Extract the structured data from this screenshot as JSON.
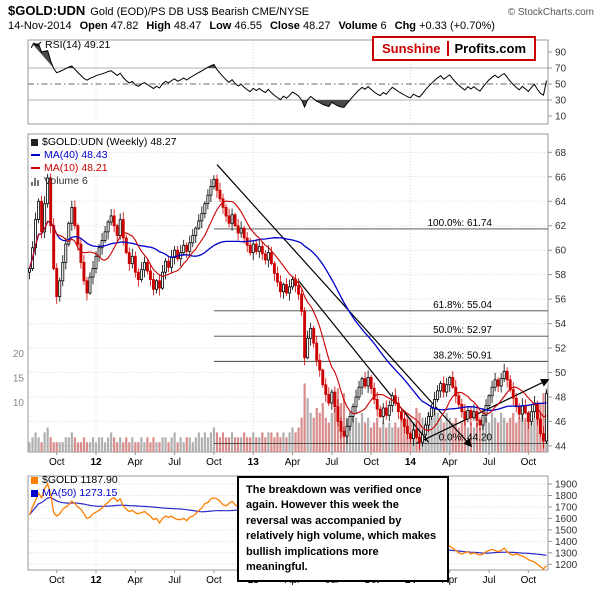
{
  "header": {
    "symbol": "$GOLD:UDN",
    "description": "Gold (EOD)/PS DB US$ Bearish CME/NYSE",
    "copyright": "© StockCharts.com",
    "date": "14-Nov-2014",
    "quote": [
      {
        "label": "Open",
        "value": "47.82"
      },
      {
        "label": "High",
        "value": "48.47"
      },
      {
        "label": "Low",
        "value": "46.55"
      },
      {
        "label": "Close",
        "value": "48.27"
      },
      {
        "label": "Volume",
        "value": "6"
      },
      {
        "label": "Chg",
        "value": "+0.33 (+0.70%)"
      }
    ]
  },
  "logo": {
    "first": "Sunshine",
    "second": "Profits.com"
  },
  "annotation": {
    "text": "The breakdown was verified once again. However this week the reversal was accompanied by relatively high volume, which makes bullish implications more meaningful."
  },
  "rsi_panel": {
    "legend": "RSI(14) 49.21",
    "yticks": [
      90,
      70,
      50,
      30,
      10
    ],
    "levels": {
      "upper": 70,
      "middle": 50,
      "lower": 30
    }
  },
  "main_panel": {
    "legend_symbol": "$GOLD:UDN (Weekly) 48.27",
    "legend_ma40": "MA(40) 48.43",
    "legend_ma10": "MA(10) 48.21",
    "legend_volume": "Volume 6",
    "yticks": [
      44,
      46,
      48,
      50,
      52,
      54,
      56,
      58,
      60,
      62,
      64,
      66,
      68
    ],
    "volume_yticks": [
      10,
      15,
      20
    ]
  },
  "gold_panel": {
    "legend_symbol": "$GOLD 1187.90",
    "legend_ma50": "MA(50) 1273.15",
    "yticks": [
      1200,
      1300,
      1400,
      1500,
      1600,
      1700,
      1800,
      1900
    ]
  },
  "colors": {
    "up_candle": "#000000",
    "down_candle": "#cc0000",
    "ma_fast": "#cc0000",
    "ma_slow": "#0000cc",
    "volume_up": "#b0b0b0",
    "volume_down": "#d98c8c",
    "gold_line": "#ff7f00",
    "gold_ma": "#2b2bcc",
    "fib": "#444444",
    "trendline": "#000000",
    "grid": "#d9d9d9",
    "panel_border": "#999999",
    "rsi_fill": "#4a4a4a",
    "accent_red": "#cc0000"
  },
  "chart_data": {
    "type": "candlestick",
    "panels": [
      "RSI(14) oscillator",
      "$GOLD:UDN weekly candlesticks with MA(40), MA(10), volume and Fibonacci retracements",
      "$GOLD line with MA(50)"
    ],
    "x_range": "Aug 2011 - 14 Nov 2014, weekly",
    "xticks": [
      {
        "t": "Oct",
        "w": 9
      },
      {
        "t": "12",
        "w": 22,
        "b": 1
      },
      {
        "t": "Apr",
        "w": 35
      },
      {
        "t": "Jul",
        "w": 48
      },
      {
        "t": "Oct",
        "w": 61
      },
      {
        "t": "13",
        "w": 74,
        "b": 1
      },
      {
        "t": "Apr",
        "w": 87
      },
      {
        "t": "Jul",
        "w": 100
      },
      {
        "t": "Oct",
        "w": 113
      },
      {
        "t": "14",
        "w": 126,
        "b": 1
      },
      {
        "t": "Apr",
        "w": 139
      },
      {
        "t": "Jul",
        "w": 152
      },
      {
        "t": "Oct",
        "w": 165
      }
    ],
    "year_weeks": [
      22,
      74,
      126
    ],
    "ratio_ylim": [
      43.5,
      69.5
    ],
    "gold_ylim": [
      1150,
      1970
    ],
    "rsi_period": 14,
    "fib_start_week": 61,
    "fib_levels": [
      {
        "label": "100.0%: 61.74",
        "value": 61.74
      },
      {
        "label": "61.8%: 55.04",
        "value": 55.04
      },
      {
        "label": "50.0%: 52.97",
        "value": 52.97
      },
      {
        "label": "38.2%: 50.91",
        "value": 50.91
      },
      {
        "label": "0.0%: 44.20",
        "value": 44.2
      }
    ],
    "trendlines": [
      {
        "points": [
          [
            62,
            67.0
          ],
          [
            146,
            44.0
          ]
        ],
        "arrow": true
      },
      {
        "points": [
          [
            128,
            44.2
          ],
          [
            171.5,
            49.4
          ]
        ],
        "arrow": true
      },
      {
        "points": [
          [
            89,
            57.5
          ],
          [
            132,
            44.3
          ]
        ],
        "arrow": false
      }
    ],
    "ratio_closes": [
      58.5,
      60.2,
      62.5,
      64.0,
      61.5,
      63.8,
      65.9,
      62.0,
      58.5,
      56.2,
      57.5,
      59.0,
      60.5,
      62.2,
      63.5,
      62.0,
      60.5,
      59.0,
      57.5,
      56.5,
      57.8,
      58.5,
      59.5,
      60.2,
      60.8,
      61.5,
      62.3,
      62.8,
      62.0,
      61.2,
      62.5,
      61.0,
      59.8,
      58.9,
      59.5,
      58.2,
      57.6,
      58.4,
      59.0,
      58.3,
      57.6,
      56.8,
      57.5,
      56.9,
      58.2,
      59.1,
      58.6,
      59.4,
      60.0,
      59.3,
      59.8,
      60.4,
      59.9,
      60.6,
      61.2,
      61.8,
      62.4,
      63.0,
      63.8,
      64.5,
      65.2,
      65.8,
      64.9,
      64.2,
      63.5,
      62.8,
      62.2,
      62.9,
      62.0,
      61.4,
      61.8,
      61.0,
      60.4,
      59.8,
      60.5,
      59.9,
      60.3,
      59.7,
      59.2,
      59.8,
      58.9,
      58.1,
      57.4,
      56.6,
      57.2,
      56.5,
      57.0,
      57.6,
      57.1,
      56.4,
      55.0,
      51.2,
      52.8,
      53.6,
      52.4,
      51.0,
      50.2,
      49.0,
      48.2,
      47.5,
      48.4,
      47.2,
      46.0,
      45.2,
      44.8,
      45.6,
      46.4,
      47.2,
      48.0,
      48.8,
      49.5,
      48.9,
      49.6,
      48.7,
      47.8,
      47.0,
      46.4,
      47.1,
      46.5,
      47.3,
      48.1,
      47.5,
      46.8,
      46.2,
      45.6,
      45.0,
      44.6,
      45.3,
      44.7,
      44.3,
      44.9,
      45.7,
      46.4,
      47.1,
      47.8,
      48.5,
      49.1,
      48.4,
      49.0,
      49.6,
      48.8,
      48.1,
      47.4,
      46.8,
      46.2,
      46.9,
      46.3,
      46.8,
      46.1,
      45.7,
      46.5,
      47.3,
      48.1,
      48.8,
      49.4,
      48.9,
      49.5,
      50.1,
      49.4,
      48.6,
      47.9,
      47.2,
      46.6,
      47.3,
      46.7,
      46.0,
      46.8,
      47.5,
      46.2,
      45.0,
      44.4,
      48.27
    ],
    "volume": [
      2,
      3,
      4,
      3,
      2,
      4,
      5,
      3,
      2,
      2,
      2,
      2,
      3,
      3,
      4,
      3,
      2,
      2,
      3,
      2,
      2,
      3,
      2,
      3,
      3,
      2,
      3,
      4,
      3,
      2,
      3,
      2,
      3,
      2,
      3,
      2,
      2,
      3,
      2,
      3,
      2,
      3,
      2,
      2,
      3,
      3,
      2,
      3,
      4,
      2,
      3,
      2,
      3,
      3,
      2,
      3,
      4,
      3,
      4,
      3,
      4,
      5,
      4,
      3,
      4,
      3,
      3,
      4,
      3,
      3,
      3,
      4,
      3,
      3,
      4,
      3,
      3,
      4,
      3,
      4,
      4,
      3,
      4,
      3,
      4,
      3,
      4,
      5,
      4,
      5,
      7,
      14,
      11,
      8,
      7,
      9,
      8,
      10,
      7,
      6,
      8,
      9,
      13,
      10,
      12,
      7,
      6,
      8,
      7,
      6,
      8,
      6,
      7,
      5,
      6,
      7,
      5,
      6,
      5,
      6,
      5,
      6,
      5,
      7,
      6,
      8,
      7,
      6,
      9,
      8,
      7,
      6,
      8,
      7,
      9,
      8,
      7,
      6,
      8,
      7,
      6,
      7,
      5,
      6,
      7,
      5,
      6,
      5,
      6,
      5,
      6,
      7,
      6,
      8,
      7,
      6,
      8,
      7,
      6,
      7,
      8,
      6,
      7,
      9,
      7,
      8,
      6,
      7,
      9,
      10,
      12,
      13
    ],
    "gold_closes": [
      1630,
      1700,
      1760,
      1820,
      1780,
      1860,
      1900,
      1810,
      1650,
      1620,
      1640,
      1680,
      1700,
      1720,
      1750,
      1730,
      1700,
      1680,
      1640,
      1600,
      1610,
      1640,
      1655,
      1670,
      1690,
      1720,
      1740,
      1770,
      1780,
      1750,
      1770,
      1710,
      1680,
      1660,
      1670,
      1650,
      1640,
      1650,
      1660,
      1640,
      1620,
      1590,
      1600,
      1560,
      1600,
      1620,
      1610,
      1620,
      1600,
      1590,
      1590,
      1600,
      1580,
      1610,
      1620,
      1640,
      1670,
      1690,
      1730,
      1740,
      1770,
      1780,
      1770,
      1750,
      1720,
      1710,
      1730,
      1750,
      1720,
      1700,
      1710,
      1700,
      1690,
      1660,
      1670,
      1660,
      1670,
      1660,
      1650,
      1670,
      1640,
      1610,
      1580,
      1570,
      1590,
      1580,
      1590,
      1600,
      1590,
      1580,
      1540,
      1400,
      1420,
      1460,
      1440,
      1410,
      1390,
      1360,
      1390,
      1410,
      1390,
      1340,
      1290,
      1230,
      1220,
      1240,
      1260,
      1290,
      1310,
      1330,
      1340,
      1370,
      1390,
      1370,
      1330,
      1310,
      1320,
      1340,
      1330,
      1320,
      1340,
      1350,
      1330,
      1310,
      1280,
      1260,
      1250,
      1240,
      1230,
      1210,
      1200,
      1220,
      1250,
      1260,
      1270,
      1300,
      1320,
      1330,
      1340,
      1360,
      1340,
      1320,
      1300,
      1290,
      1300,
      1310,
      1290,
      1300,
      1290,
      1280,
      1290,
      1310,
      1320,
      1330,
      1320,
      1310,
      1320,
      1340,
      1310,
      1290,
      1280,
      1290,
      1280,
      1270,
      1260,
      1240,
      1230,
      1220,
      1200,
      1180,
      1160,
      1187.9
    ]
  }
}
